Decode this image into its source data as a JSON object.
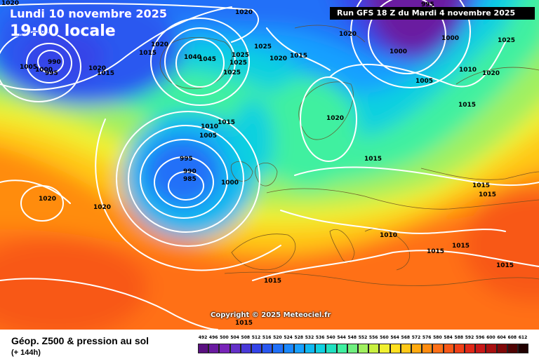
{
  "header": {
    "date_label": "Lundi 10 novembre 2025",
    "time_label": "19:00 locale",
    "run_label": "Run GFS 18 Z du Mardi 4 novembre 2025"
  },
  "copyright": "Copyright © 2025 Meteociel.fr",
  "footer": {
    "parameter": "Géop. Z500 & pression au sol",
    "forecast_hour": "(+ 144h)"
  },
  "color_scale": {
    "labels": [
      "492",
      "496",
      "500",
      "504",
      "508",
      "512",
      "516",
      "520",
      "524",
      "528",
      "532",
      "536",
      "540",
      "544",
      "548",
      "552",
      "556",
      "560",
      "564",
      "568",
      "572",
      "576",
      "580",
      "584",
      "588",
      "592",
      "596",
      "600",
      "604",
      "608",
      "612"
    ],
    "colors": [
      "#5a1080",
      "#6a1aa0",
      "#7824b8",
      "#6430c8",
      "#4a3ad8",
      "#3444e8",
      "#2a58f0",
      "#2070f8",
      "#1a88ff",
      "#18a0ff",
      "#10b8f0",
      "#10d0e0",
      "#20e0c0",
      "#40f0a0",
      "#70f080",
      "#a0f060",
      "#c8f040",
      "#f0f030",
      "#ffe020",
      "#ffc818",
      "#ffaa10",
      "#ff8c10",
      "#ff7018",
      "#f85818",
      "#f04018",
      "#e02818",
      "#c81818",
      "#a81010",
      "#800808",
      "#500404",
      "#200000"
    ]
  },
  "isobar_labels": [
    "1020",
    "1020",
    "1020",
    "1015",
    "1005",
    "990",
    "1000",
    "995",
    "1015",
    "1020",
    "1015",
    "1040",
    "1045",
    "1025",
    "1025",
    "1025",
    "1025",
    "1020",
    "1015",
    "995",
    "1000",
    "1000",
    "1020",
    "1025",
    "1010",
    "1020",
    "1005",
    "1015",
    "1010",
    "1005",
    "1015",
    "1020",
    "995",
    "990",
    "985",
    "1000",
    "1015",
    "1015",
    "1020",
    "1020",
    "1010",
    "1015",
    "1015",
    "1015",
    "1015",
    "1015"
  ]
}
